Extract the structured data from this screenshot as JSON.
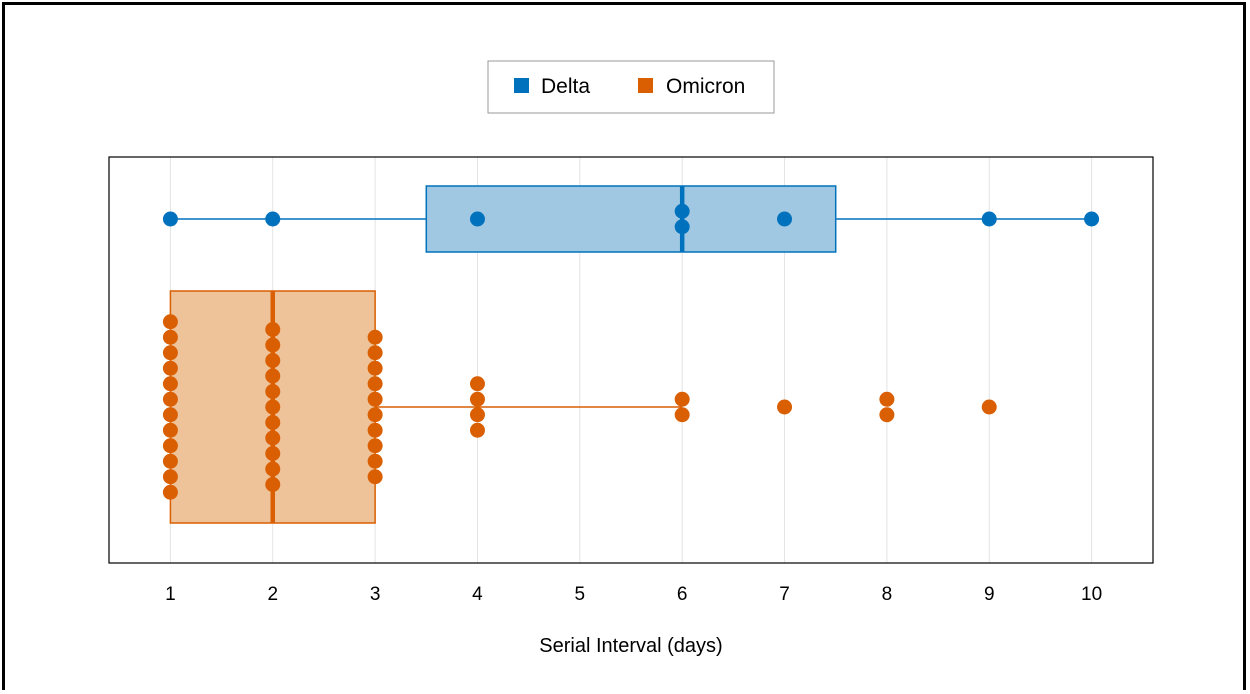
{
  "chart_data": {
    "type": "boxplot",
    "xlabel": "Serial Interval (days)",
    "xlim": [
      0.4,
      10.6
    ],
    "xticks": [
      1,
      2,
      3,
      4,
      5,
      6,
      7,
      8,
      9,
      10
    ],
    "grid": true,
    "legend": {
      "placement": "top-center",
      "entries": [
        "Delta",
        "Omicron"
      ]
    },
    "series": [
      {
        "name": "Delta",
        "color": "#0072bd",
        "fill": "#a0c8e2",
        "box": {
          "min": 1,
          "q1": 3.5,
          "median": 6,
          "q3": 7.5,
          "max": 10
        },
        "points": [
          {
            "x": 1,
            "count": 1
          },
          {
            "x": 2,
            "count": 1
          },
          {
            "x": 4,
            "count": 1
          },
          {
            "x": 6,
            "count": 2
          },
          {
            "x": 7,
            "count": 1
          },
          {
            "x": 9,
            "count": 1
          },
          {
            "x": 10,
            "count": 1
          }
        ]
      },
      {
        "name": "Omicron",
        "color": "#d95f02",
        "fill": "#eec39a",
        "box": {
          "min": 1,
          "q1": 1,
          "median": 2,
          "q3": 3,
          "max": 6
        },
        "points": [
          {
            "x": 1,
            "count": 12
          },
          {
            "x": 2,
            "count": 11
          },
          {
            "x": 3,
            "count": 10
          },
          {
            "x": 4,
            "count": 4
          },
          {
            "x": 6,
            "count": 2
          },
          {
            "x": 7,
            "count": 1
          },
          {
            "x": 8,
            "count": 2
          },
          {
            "x": 9,
            "count": 1
          }
        ]
      }
    ]
  }
}
